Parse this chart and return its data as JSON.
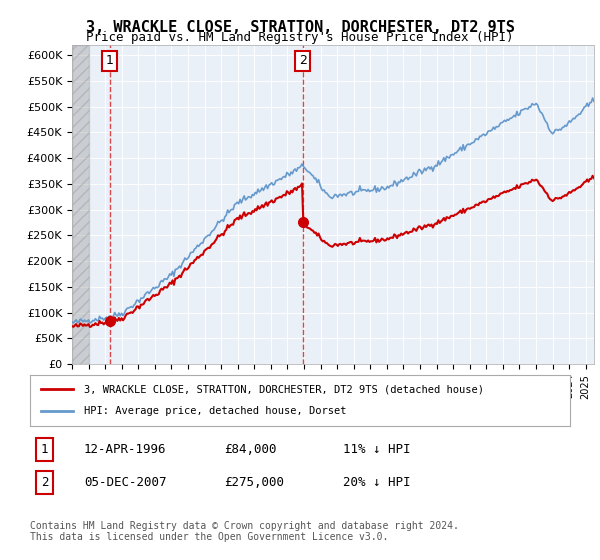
{
  "title": "3, WRACKLE CLOSE, STRATTON, DORCHESTER, DT2 9TS",
  "subtitle": "Price paid vs. HM Land Registry's House Price Index (HPI)",
  "ylabel": "",
  "ylim": [
    0,
    620000
  ],
  "yticks": [
    0,
    50000,
    100000,
    150000,
    200000,
    250000,
    300000,
    350000,
    400000,
    450000,
    500000,
    550000,
    600000
  ],
  "ytick_labels": [
    "£0",
    "£50K",
    "£100K",
    "£150K",
    "£200K",
    "£250K",
    "£300K",
    "£350K",
    "£400K",
    "£450K",
    "£500K",
    "£550K",
    "£600K"
  ],
  "hpi_color": "#6699cc",
  "price_color": "#cc0000",
  "sale1_date": 1996.28,
  "sale1_price": 84000,
  "sale2_date": 2007.92,
  "sale2_price": 275000,
  "legend_property": "3, WRACKLE CLOSE, STRATTON, DORCHESTER, DT2 9TS (detached house)",
  "legend_hpi": "HPI: Average price, detached house, Dorset",
  "table_row1": [
    "1",
    "12-APR-1996",
    "£84,000",
    "11% ↓ HPI"
  ],
  "table_row2": [
    "2",
    "05-DEC-2007",
    "£275,000",
    "20% ↓ HPI"
  ],
  "footnote": "Contains HM Land Registry data © Crown copyright and database right 2024.\nThis data is licensed under the Open Government Licence v3.0.",
  "background_color": "#eaf0f8",
  "plot_bg": "#eaf0f8"
}
